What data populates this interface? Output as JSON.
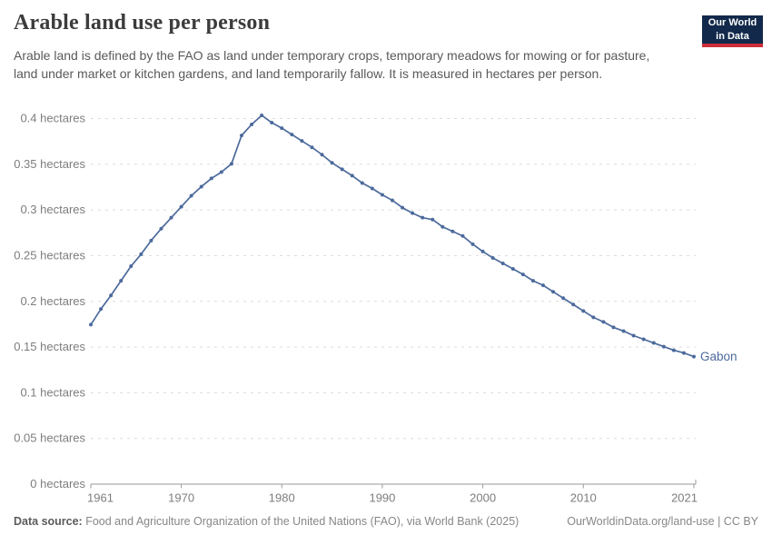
{
  "header": {
    "title": "Arable land use per person",
    "subtitle": "Arable land is defined by the FAO as land under temporary crops, temporary meadows for mowing or for pasture, land under market or kitchen gardens, and land temporarily fallow. It is measured in hectares per person."
  },
  "logo": {
    "line1": "Our World",
    "line2": "in Data"
  },
  "chart_data": {
    "type": "line",
    "title": "Arable land use per person",
    "unit": "hectares",
    "xlabel": "",
    "ylabel": "hectares",
    "ylim": [
      0,
      0.4
    ],
    "grid": true,
    "legend_position": "end-of-line-label",
    "x_ticks": [
      "1961",
      "1970",
      "1980",
      "1990",
      "2000",
      "2010",
      "2021"
    ],
    "y_ticks": [
      {
        "value": 0,
        "label": "0 hectares"
      },
      {
        "value": 0.05,
        "label": "0.05 hectares"
      },
      {
        "value": 0.1,
        "label": "0.1 hectares"
      },
      {
        "value": 0.15,
        "label": "0.15 hectares"
      },
      {
        "value": 0.2,
        "label": "0.2 hectares"
      },
      {
        "value": 0.25,
        "label": "0.25 hectares"
      },
      {
        "value": 0.3,
        "label": "0.3 hectares"
      },
      {
        "value": 0.35,
        "label": "0.35 hectares"
      },
      {
        "value": 0.4,
        "label": "0.4 hectares"
      }
    ],
    "x": [
      1961,
      1962,
      1963,
      1964,
      1965,
      1966,
      1967,
      1968,
      1969,
      1970,
      1971,
      1972,
      1973,
      1974,
      1975,
      1976,
      1977,
      1978,
      1979,
      1980,
      1981,
      1982,
      1983,
      1984,
      1985,
      1986,
      1987,
      1988,
      1989,
      1990,
      1991,
      1992,
      1993,
      1994,
      1995,
      1996,
      1997,
      1998,
      1999,
      2000,
      2001,
      2002,
      2003,
      2004,
      2005,
      2006,
      2007,
      2008,
      2009,
      2010,
      2011,
      2012,
      2013,
      2014,
      2015,
      2016,
      2017,
      2018,
      2019,
      2020,
      2021
    ],
    "series": [
      {
        "name": "Gabon",
        "color": "#4C6A9C",
        "values": [
          0.174,
          0.191,
          0.206,
          0.222,
          0.238,
          0.251,
          0.266,
          0.279,
          0.291,
          0.303,
          0.315,
          0.325,
          0.334,
          0.341,
          0.35,
          0.381,
          0.393,
          0.403,
          0.395,
          0.389,
          0.382,
          0.375,
          0.368,
          0.36,
          0.351,
          0.344,
          0.337,
          0.329,
          0.323,
          0.316,
          0.31,
          0.302,
          0.296,
          0.291,
          0.289,
          0.281,
          0.276,
          0.271,
          0.262,
          0.254,
          0.247,
          0.241,
          0.235,
          0.229,
          0.222,
          0.217,
          0.21,
          0.203,
          0.196,
          0.189,
          0.182,
          0.177,
          0.171,
          0.167,
          0.162,
          0.158,
          0.154,
          0.15,
          0.146,
          0.143,
          0.139
        ]
      }
    ],
    "colors": {
      "line": "#4C6A9C",
      "grid": "#dcdcdc",
      "axis": "#9a9a9a",
      "tick_text": "#7d7d7d",
      "entity_label": "#4C6A9C"
    }
  },
  "footer": {
    "source_label": "Data source:",
    "source_text": "Food and Agriculture Organization of the United Nations (FAO), via World Bank (2025)",
    "url": "OurWorldinData.org/land-use",
    "separator": " | ",
    "license": "CC BY"
  }
}
